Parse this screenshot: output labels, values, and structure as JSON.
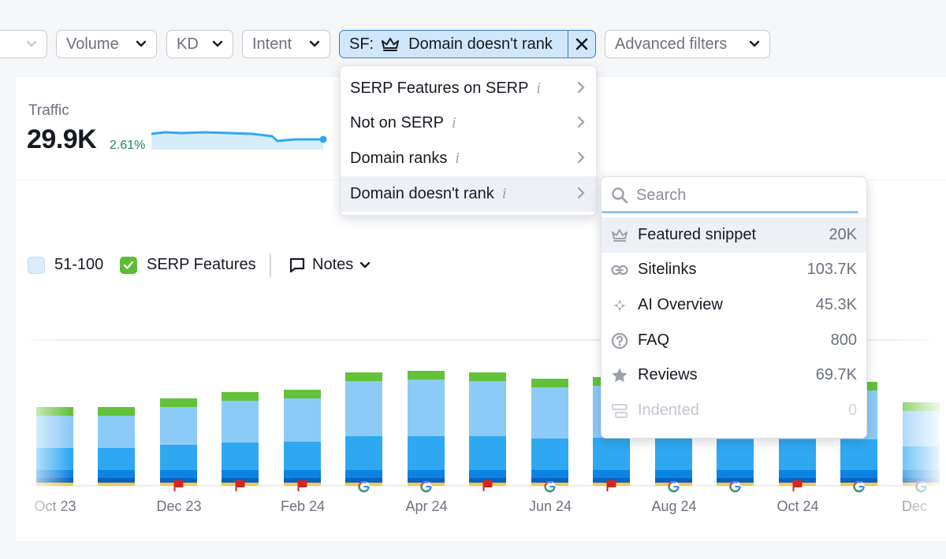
{
  "filters": {
    "volume_label": "Volume",
    "kd_label": "KD",
    "intent_label": "Intent",
    "sf_prefix": "SF:",
    "sf_value": "Domain doesn't rank",
    "advanced_label": "Advanced filters"
  },
  "traffic": {
    "label": "Traffic",
    "value": "29.9K",
    "delta": "2.61%"
  },
  "legend": {
    "item_51_100": "51-100",
    "serp_features": "SERP Features",
    "notes": "Notes"
  },
  "menu": {
    "items": [
      {
        "label": "SERP Features on SERP"
      },
      {
        "label": "Not on SERP"
      },
      {
        "label": "Domain ranks"
      },
      {
        "label": "Domain doesn't rank"
      }
    ]
  },
  "submenu": {
    "search_placeholder": "Search",
    "items": [
      {
        "label": "Featured snippet",
        "count": "20K",
        "icon": "crown-icon"
      },
      {
        "label": "Sitelinks",
        "count": "103.7K",
        "icon": "link-icon"
      },
      {
        "label": "AI Overview",
        "count": "45.3K",
        "icon": "sparkle-icon"
      },
      {
        "label": "FAQ",
        "count": "800",
        "icon": "question-icon"
      },
      {
        "label": "Reviews",
        "count": "69.7K",
        "icon": "star-icon"
      },
      {
        "label": "Indented",
        "count": "0",
        "icon": "indent-icon"
      }
    ]
  },
  "chart_data": {
    "type": "bar",
    "x_tick_labels": [
      "Oct 23",
      "Dec 23",
      "Feb 24",
      "Apr 24",
      "Jun 24",
      "Aug 24",
      "Oct 24",
      "Dec"
    ],
    "colors": {
      "serp_features": "#62c23a",
      "light_blue": "#8ccaf7",
      "mid_blue": "#2fa8f2",
      "dark_blue": "#0b84e3",
      "navy": "#0a62c2",
      "yellow": "#f2c94c",
      "flag_red": "#d3261f"
    }
  }
}
